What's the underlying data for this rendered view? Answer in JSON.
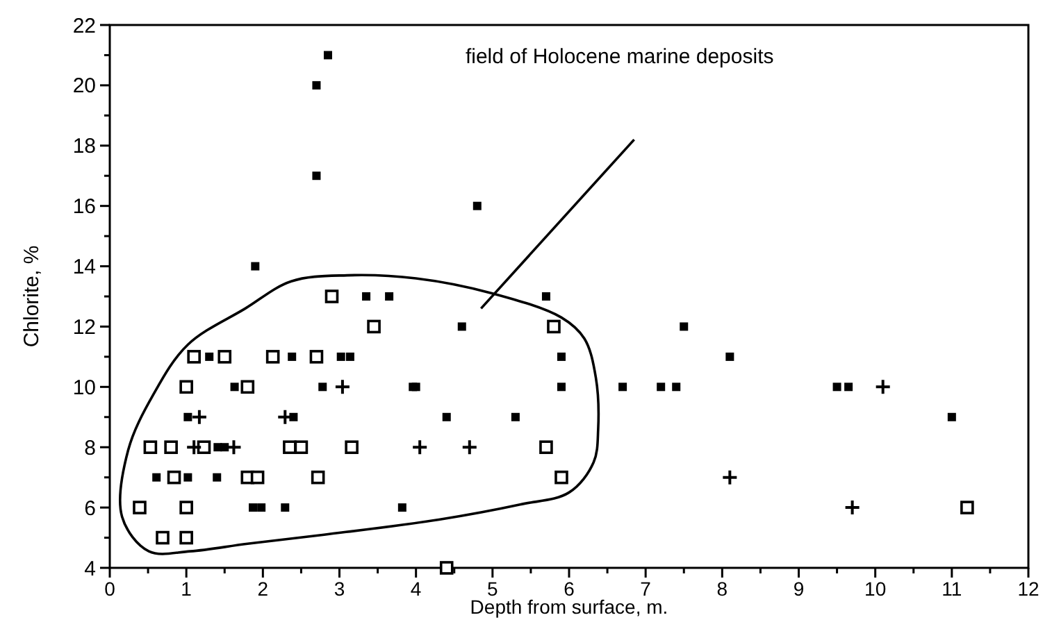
{
  "chart_data": {
    "type": "scatter",
    "xlabel": "Depth from surface, m.",
    "ylabel": "Chlorite, %",
    "xlim": [
      0,
      12
    ],
    "ylim": [
      4,
      22
    ],
    "xticks": [
      0,
      {
        "value": 0.5,
        "label": null
      },
      1,
      {
        "value": 1.5,
        "label": null
      },
      2,
      {
        "value": 2.5,
        "label": null
      },
      3,
      {
        "value": 3.5,
        "label": null
      },
      4,
      {
        "value": 4.5,
        "label": null
      },
      5,
      {
        "value": 5.5,
        "label": null
      },
      6,
      {
        "value": 6.5,
        "label": null
      },
      7,
      {
        "value": 7.5,
        "label": null
      },
      8,
      {
        "value": 8.5,
        "label": null
      },
      9,
      {
        "value": 9.5,
        "label": null
      },
      10,
      {
        "value": 10.5,
        "label": null
      },
      11,
      {
        "value": 11.5,
        "label": null
      },
      12
    ],
    "yticks": [
      4,
      {
        "value": 5,
        "label": null
      },
      6,
      {
        "value": 7,
        "label": null
      },
      8,
      {
        "value": 9,
        "label": null
      },
      10,
      {
        "value": 11,
        "label": null
      },
      12,
      {
        "value": 13,
        "label": null
      },
      14,
      {
        "value": 15,
        "label": null
      },
      16,
      {
        "value": 17,
        "label": null
      },
      18,
      {
        "value": 19,
        "label": null
      },
      20,
      {
        "value": 21,
        "label": null
      },
      22
    ],
    "grid": false,
    "annotations": [
      "field of Holocene marine deposits"
    ],
    "series": [
      {
        "marker": "square",
        "color": "#000000",
        "x": [
          1.9,
          3.35,
          3.65,
          1.3,
          2.38,
          3.02,
          3.14,
          1.63,
          2.78,
          3.96,
          1.02,
          2.4,
          1.41,
          1.5,
          0.61,
          1.02,
          1.4,
          1.87,
          1.98,
          2.29,
          3.82,
          4.8,
          5.7,
          4.6,
          5.9,
          4.0,
          5.9,
          6.7,
          7.2,
          7.4,
          4.4,
          5.3,
          7.5,
          8.1,
          9.5,
          9.65,
          11.0,
          2.7,
          2.85,
          2.7
        ],
        "values": [
          14,
          13,
          13,
          11,
          11,
          11,
          11,
          10,
          10,
          10,
          9,
          9,
          8,
          8,
          7,
          7,
          7,
          6,
          6,
          6,
          6,
          16,
          13,
          12,
          11,
          10,
          10,
          10,
          10,
          10,
          9,
          9,
          12,
          11,
          10,
          10,
          9,
          20,
          21,
          17
        ]
      },
      {
        "marker": "square-open",
        "color": "#000000",
        "x": [
          2.9,
          3.45,
          1.1,
          1.5,
          2.13,
          2.7,
          1.0,
          1.8,
          0.53,
          0.8,
          1.23,
          2.35,
          2.5,
          3.16,
          0.84,
          1.8,
          1.93,
          2.72,
          0.39,
          1.0,
          0.69,
          1.0,
          5.8,
          5.7,
          5.9,
          4.4,
          11.2
        ],
        "values": [
          13,
          12,
          11,
          11,
          11,
          11,
          10,
          10,
          8,
          8,
          8,
          8,
          8,
          8,
          7,
          7,
          7,
          7,
          6,
          6,
          5,
          5,
          12,
          8,
          7,
          4,
          6
        ]
      },
      {
        "marker": "cross",
        "color": "#000000",
        "x": [
          3.04,
          1.17,
          2.29,
          1.1,
          1.62,
          4.05,
          4.7,
          10.1,
          8.1,
          9.7
        ],
        "values": [
          10,
          9,
          9,
          8,
          8,
          8,
          8,
          10,
          7,
          6
        ]
      },
      {
        "type": "line",
        "marker": "none",
        "color": "#000000",
        "x": [
          4.85,
          6.85
        ],
        "values": [
          12.6,
          18.2
        ]
      }
    ]
  }
}
